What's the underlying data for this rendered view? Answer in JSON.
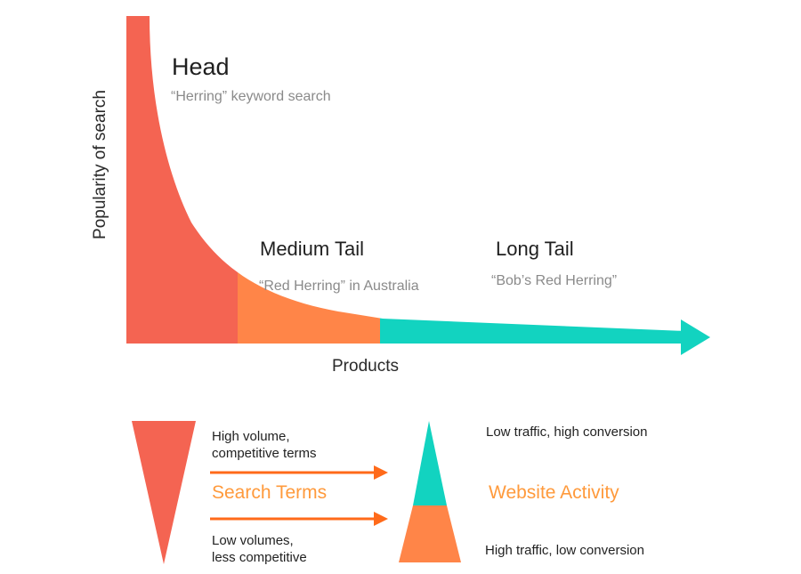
{
  "chart": {
    "ylabel": "Popularity of search",
    "xlabel": "Products",
    "segments": [
      {
        "title": "Head",
        "example": "“Herring” keyword search",
        "color": "#f46452"
      },
      {
        "title": "Medium Tail",
        "example": "“Red Herring” in Australia",
        "color": "#ff8548"
      },
      {
        "title": "Long Tail",
        "example": "“Bob’s Red Herring”",
        "color": "#12d3c0"
      }
    ]
  },
  "legend": {
    "search": {
      "label": "Search Terms",
      "top_note": [
        "High volume,",
        "competitive terms"
      ],
      "bottom_note": [
        "Low volumes,",
        "less competitive"
      ],
      "color": "#f46452"
    },
    "activity": {
      "label": "Website Activity",
      "top_note": "Low traffic, high conversion",
      "bottom_note": "High traffic, low conversion",
      "top_color": "#12d3c0",
      "bottom_color": "#ff8548"
    },
    "arrow_color": "#ff6a1a",
    "label_color": "#ff9a3c"
  }
}
